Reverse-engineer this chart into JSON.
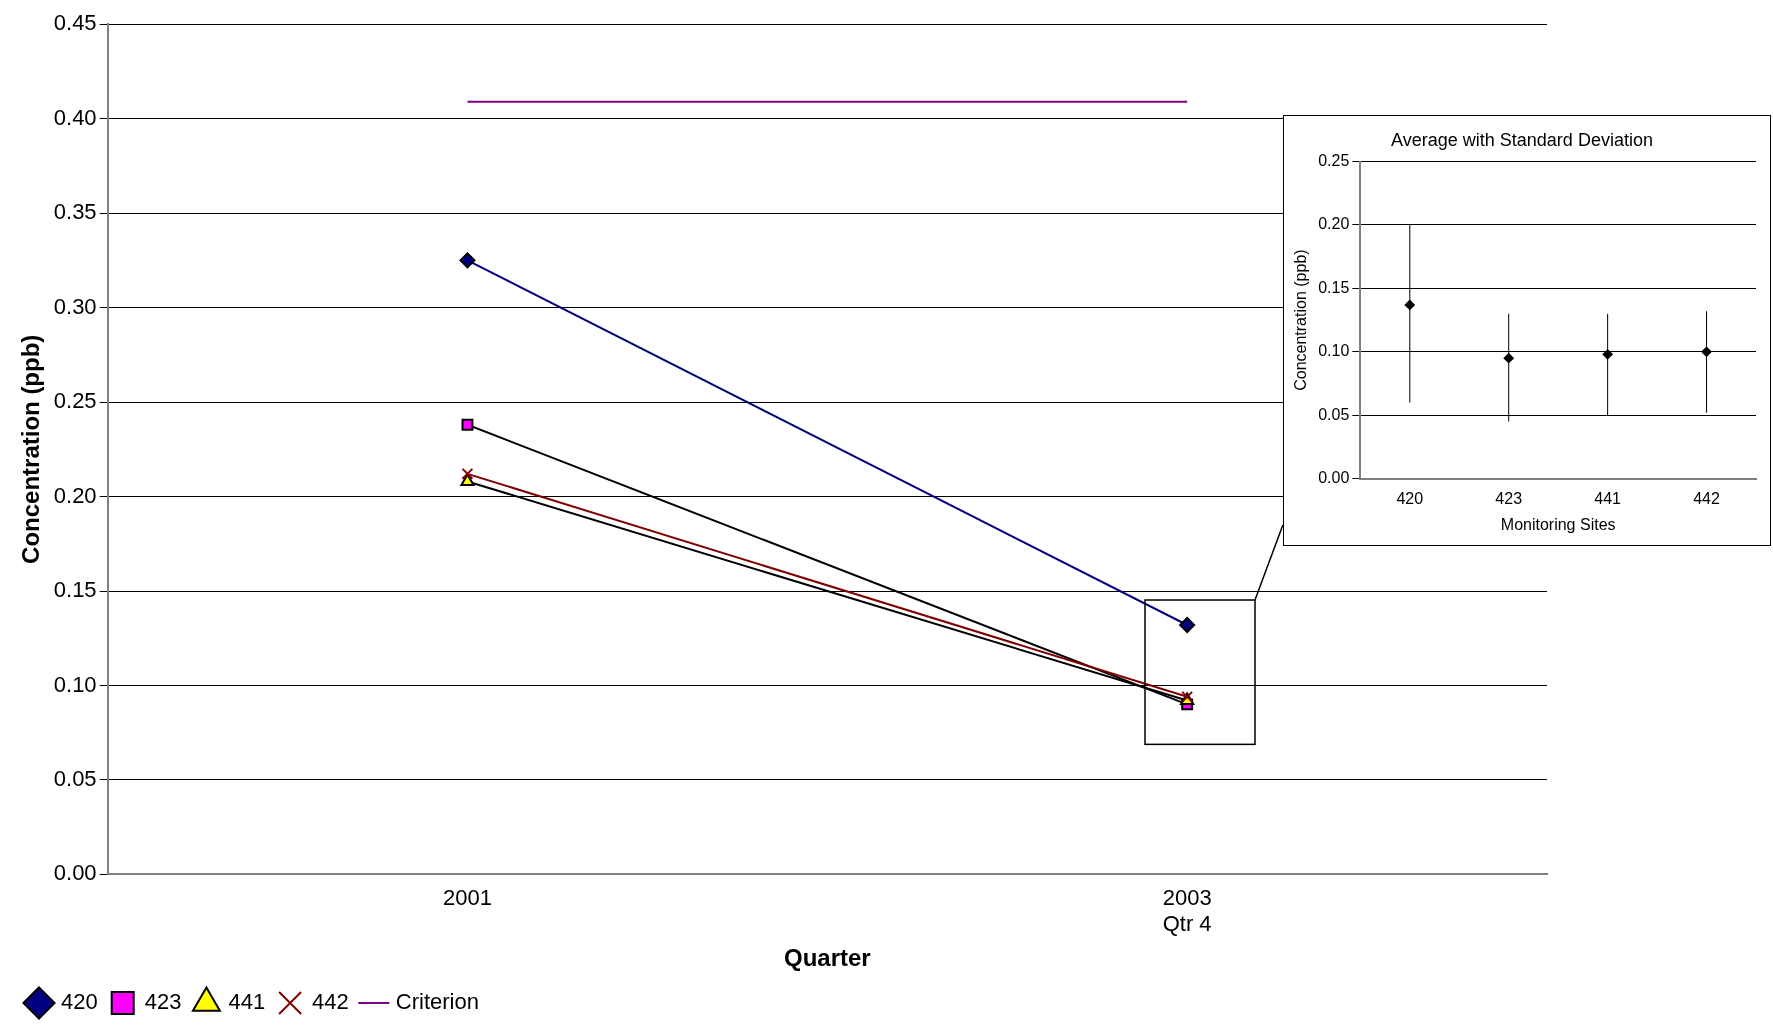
{
  "chart_data": [
    {
      "type": "line",
      "xlabel": "Quarter",
      "ylabel": "Concentration (ppb)",
      "categories": [
        "2001",
        "2003\nQtr 4"
      ],
      "ylim": [
        0,
        0.45
      ],
      "yticks": [
        {
          "value": 0,
          "label": "0.00"
        },
        {
          "value": 0.05,
          "label": "0.05"
        },
        {
          "value": 0.1,
          "label": "0.10"
        },
        {
          "value": 0.15,
          "label": "0.15"
        },
        {
          "value": 0.2,
          "label": "0.20"
        },
        {
          "value": 0.25,
          "label": "0.25"
        },
        {
          "value": 0.3,
          "label": "0.30"
        },
        {
          "value": 0.35,
          "label": "0.35"
        },
        {
          "value": 0.4,
          "label": "0.40"
        },
        {
          "value": 0.45,
          "label": "0.45"
        }
      ],
      "grid": "y",
      "legend": "bottom left",
      "series": [
        {
          "name": "420",
          "color": "#000080",
          "colors": [
            "#000080",
            "#000080"
          ],
          "marker": "diamond",
          "values": [
            0.325,
            0.132
          ]
        },
        {
          "name": "423",
          "color": "#000000",
          "colors": [
            "#ff00ff",
            "#ff00ff"
          ],
          "marker": "square",
          "values": [
            0.238,
            0.09
          ]
        },
        {
          "name": "441",
          "color": "#000000",
          "colors": [
            "#ffff00",
            "#ffff00"
          ],
          "marker": "triangle",
          "values": [
            0.208,
            0.092
          ]
        },
        {
          "name": "442",
          "color": "#800000",
          "colors": [
            "#800000",
            "#800000"
          ],
          "marker": "cross",
          "values": [
            0.212,
            0.094
          ]
        },
        {
          "name": "Criterion",
          "color": "#800080",
          "marker": "none",
          "values": [
            0.409,
            0.409
          ]
        }
      ]
    },
    {
      "type": "scatter",
      "title": "Average with Standard Deviation",
      "xlabel": "Monitoring Sites",
      "ylabel": "Concentration (ppb)",
      "categories": [
        "420",
        "423",
        "441",
        "442"
      ],
      "ylim": [
        0,
        0.25
      ],
      "yticks": [
        {
          "value": 0,
          "label": "0.00"
        },
        {
          "value": 0.05,
          "label": "0.05"
        },
        {
          "value": 0.1,
          "label": "0.10"
        },
        {
          "value": 0.15,
          "label": "0.15"
        },
        {
          "value": 0.2,
          "label": "0.20"
        },
        {
          "value": 0.25,
          "label": "0.25"
        }
      ],
      "grid": "y",
      "legend": false,
      "marker": "diamond",
      "color": "#000000",
      "values": [
        0.137,
        0.095,
        0.098,
        0.1
      ],
      "errors": [
        [
          0.06,
          0.2
        ],
        [
          0.045,
          0.13
        ],
        [
          0.05,
          0.13
        ],
        [
          0.052,
          0.132
        ]
      ]
    }
  ]
}
